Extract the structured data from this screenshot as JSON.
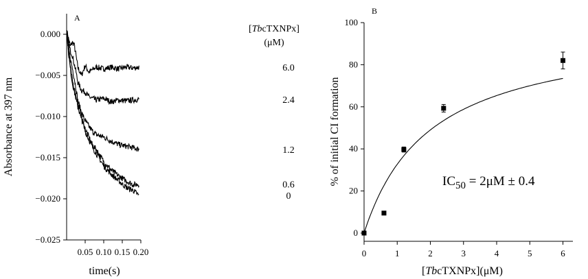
{
  "chart_data": [
    {
      "panel": "A",
      "type": "line",
      "xlabel": "time(s)",
      "ylabel": "Absorbance at 397 nm",
      "xlim": [
        0,
        0.2
      ],
      "ylim": [
        -0.025,
        0.0025
      ],
      "xticks": [
        0.05,
        0.1,
        0.15,
        0.2
      ],
      "xtick_labels": [
        "0.05",
        "0.10",
        "0.15",
        "0.20"
      ],
      "yticks": [
        0.0,
        -0.005,
        -0.01,
        -0.015,
        -0.02,
        -0.025
      ],
      "ytick_labels": [
        "0.000",
        "−0.005",
        "−0.010",
        "−0.015",
        "−0.020",
        "−0.025"
      ],
      "legend_title_line1": "[TbcTXNPx]",
      "legend_title_line2": "(μM)",
      "series": [
        {
          "name": "6.0",
          "x": [
            0,
            0.005,
            0.01,
            0.015,
            0.02,
            0.025,
            0.03,
            0.04,
            0.05,
            0.06,
            0.08,
            0.1,
            0.12,
            0.14,
            0.16,
            0.18,
            0.195
          ],
          "y": [
            0.0005,
            -0.0005,
            -0.0015,
            -0.001,
            -0.0012,
            -0.0025,
            -0.004,
            -0.005,
            -0.0038,
            -0.0046,
            -0.004,
            -0.0042,
            -0.004,
            -0.0042,
            -0.004,
            -0.0041,
            -0.004
          ]
        },
        {
          "name": "2.4",
          "x": [
            0,
            0.005,
            0.01,
            0.015,
            0.02,
            0.025,
            0.03,
            0.04,
            0.05,
            0.06,
            0.08,
            0.1,
            0.12,
            0.14,
            0.16,
            0.18,
            0.195
          ],
          "y": [
            0.0005,
            -0.001,
            -0.002,
            -0.0025,
            -0.0035,
            -0.0045,
            -0.0058,
            -0.0068,
            -0.007,
            -0.0076,
            -0.008,
            -0.0078,
            -0.0082,
            -0.008,
            -0.0081,
            -0.008,
            -0.0079
          ]
        },
        {
          "name": "1.2",
          "x": [
            0,
            0.005,
            0.01,
            0.015,
            0.02,
            0.025,
            0.03,
            0.04,
            0.05,
            0.06,
            0.07,
            0.08,
            0.1,
            0.12,
            0.14,
            0.16,
            0.18,
            0.195
          ],
          "y": [
            0.0005,
            -0.0015,
            -0.003,
            -0.004,
            -0.0052,
            -0.0065,
            -0.008,
            -0.0095,
            -0.0105,
            -0.0112,
            -0.0118,
            -0.0122,
            -0.0125,
            -0.013,
            -0.0134,
            -0.0136,
            -0.0138,
            -0.014
          ]
        },
        {
          "name": "0.6",
          "x": [
            0,
            0.005,
            0.01,
            0.015,
            0.02,
            0.025,
            0.03,
            0.04,
            0.05,
            0.06,
            0.07,
            0.08,
            0.1,
            0.12,
            0.14,
            0.16,
            0.18,
            0.195
          ],
          "y": [
            0.0005,
            -0.002,
            -0.004,
            -0.0055,
            -0.0065,
            -0.0075,
            -0.0085,
            -0.01,
            -0.0115,
            -0.0125,
            -0.0135,
            -0.014,
            -0.0155,
            -0.0165,
            -0.0172,
            -0.0178,
            -0.0183,
            -0.0182
          ]
        },
        {
          "name": "0",
          "x": [
            0,
            0.005,
            0.01,
            0.015,
            0.02,
            0.025,
            0.03,
            0.04,
            0.05,
            0.06,
            0.07,
            0.08,
            0.1,
            0.12,
            0.14,
            0.16,
            0.18,
            0.195
          ],
          "y": [
            0.0005,
            -0.0022,
            -0.0042,
            -0.0058,
            -0.0068,
            -0.0078,
            -0.0088,
            -0.0102,
            -0.0118,
            -0.0128,
            -0.0138,
            -0.0145,
            -0.016,
            -0.017,
            -0.0178,
            -0.0186,
            -0.019,
            -0.0196
          ]
        }
      ]
    },
    {
      "panel": "B",
      "type": "scatter",
      "xlabel": "[TbcTXNPx](μM)",
      "ylabel": "% of initial CI formation",
      "xlim": [
        0,
        6.3
      ],
      "ylim": [
        0,
        100
      ],
      "xticks": [
        0,
        1,
        2,
        3,
        4,
        5,
        6
      ],
      "yticks": [
        0,
        20,
        40,
        60,
        80,
        100
      ],
      "annotation": "IC50 = 2μM ± 0.4",
      "points": {
        "x": [
          0,
          0.6,
          1.2,
          2.4,
          6.0
        ],
        "y": [
          0,
          9.5,
          39.7,
          59.3,
          82
        ],
        "err": [
          0,
          0,
          1.2,
          1.8,
          4
        ]
      },
      "fit": {
        "type": "hyperbolic",
        "max": 98,
        "ic50": 2.0
      }
    }
  ]
}
